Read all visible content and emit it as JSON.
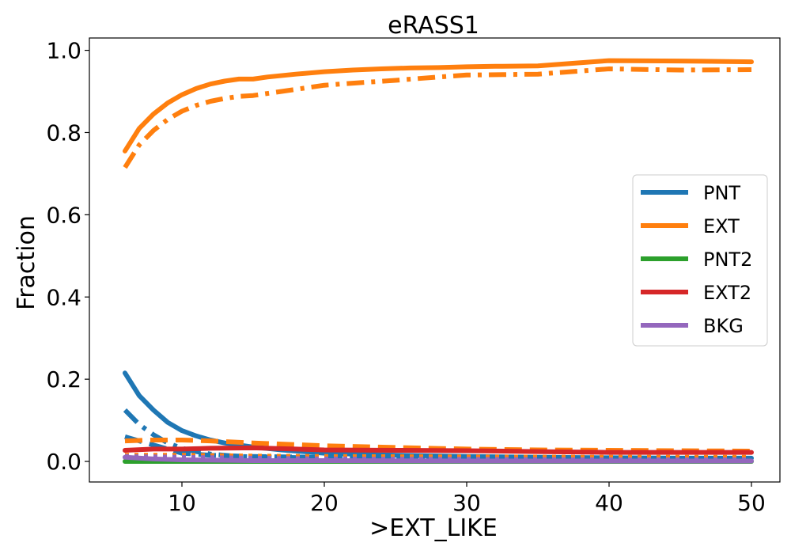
{
  "chart_data": {
    "type": "line",
    "title": "eRASS1",
    "xlabel": ">EXT_LIKE",
    "ylabel": "Fraction",
    "xlim": [
      3.5,
      52
    ],
    "ylim": [
      -0.05,
      1.03
    ],
    "xticks": [
      10,
      20,
      30,
      40,
      50
    ],
    "xtick_labels": [
      "10",
      "20",
      "30",
      "40",
      "50"
    ],
    "yticks": [
      0.0,
      0.2,
      0.4,
      0.6,
      0.8,
      1.0
    ],
    "ytick_labels": [
      "0.0",
      "0.2",
      "0.4",
      "0.6",
      "0.8",
      "1.0"
    ],
    "grid": false,
    "legend_position": "right",
    "legend": [
      {
        "name": "PNT",
        "color": "#1f77b4"
      },
      {
        "name": "EXT",
        "color": "#ff7f0e"
      },
      {
        "name": "PNT2",
        "color": "#2ca02c"
      },
      {
        "name": "EXT2",
        "color": "#d62728"
      },
      {
        "name": "BKG",
        "color": "#9467bd"
      }
    ],
    "series": [
      {
        "name": "PNT",
        "style": "solid",
        "color": "#1f77b4",
        "x": [
          6,
          7,
          8,
          9,
          10,
          11,
          12,
          13,
          14,
          15,
          17,
          20,
          25,
          30,
          35,
          40,
          45,
          50
        ],
        "y": [
          0.215,
          0.16,
          0.125,
          0.095,
          0.075,
          0.062,
          0.052,
          0.045,
          0.04,
          0.035,
          0.028,
          0.02,
          0.015,
          0.012,
          0.01,
          0.009,
          0.008,
          0.008
        ]
      },
      {
        "name": "EXT",
        "style": "solid",
        "color": "#ff7f0e",
        "x": [
          6,
          7,
          8,
          9,
          10,
          11,
          12,
          13,
          14,
          15,
          16,
          18,
          20,
          22,
          24,
          26,
          28,
          30,
          32,
          35,
          38,
          40,
          45,
          50
        ],
        "y": [
          0.755,
          0.81,
          0.845,
          0.872,
          0.892,
          0.907,
          0.918,
          0.925,
          0.93,
          0.93,
          0.935,
          0.942,
          0.948,
          0.952,
          0.955,
          0.957,
          0.958,
          0.96,
          0.961,
          0.962,
          0.97,
          0.975,
          0.974,
          0.972
        ]
      },
      {
        "name": "PNT (dashed)",
        "style": "dashed",
        "color": "#1f77b4",
        "x": [
          6,
          7,
          8,
          9,
          10,
          12,
          15,
          20,
          30,
          40,
          50
        ],
        "y": [
          0.06,
          0.05,
          0.04,
          0.03,
          0.02,
          0.015,
          0.012,
          0.01,
          0.008,
          0.007,
          0.006
        ]
      },
      {
        "name": "PNT (dashdot)",
        "style": "dashdot",
        "color": "#1f77b4",
        "x": [
          6,
          7,
          8,
          9,
          10,
          11,
          12,
          14,
          17,
          20,
          30,
          40,
          50
        ],
        "y": [
          0.125,
          0.09,
          0.065,
          0.045,
          0.032,
          0.024,
          0.018,
          0.012,
          0.01,
          0.008,
          0.006,
          0.005,
          0.005
        ]
      },
      {
        "name": "EXT (dashdot)",
        "style": "dashdot",
        "color": "#ff7f0e",
        "x": [
          6,
          7,
          8,
          9,
          10,
          11,
          12,
          13,
          14,
          15,
          17,
          20,
          22,
          25,
          28,
          30,
          35,
          40,
          45,
          50
        ],
        "y": [
          0.715,
          0.77,
          0.805,
          0.832,
          0.852,
          0.866,
          0.876,
          0.883,
          0.888,
          0.89,
          0.9,
          0.915,
          0.92,
          0.927,
          0.935,
          0.94,
          0.942,
          0.955,
          0.952,
          0.953
        ]
      },
      {
        "name": "EXT (dashed)",
        "style": "dashed",
        "color": "#ff7f0e",
        "x": [
          6,
          8,
          10,
          12,
          15,
          20,
          25,
          30,
          35,
          40,
          45,
          50
        ],
        "y": [
          0.05,
          0.052,
          0.052,
          0.05,
          0.045,
          0.038,
          0.034,
          0.03,
          0.028,
          0.027,
          0.026,
          0.025
        ]
      },
      {
        "name": "EXT (dotted)",
        "style": "dotted",
        "color": "#ff7f0e",
        "x": [
          6,
          10,
          15,
          20,
          30,
          40,
          50
        ],
        "y": [
          0.015,
          0.015,
          0.013,
          0.012,
          0.011,
          0.01,
          0.01
        ]
      },
      {
        "name": "PNT2",
        "style": "solid",
        "color": "#2ca02c",
        "x": [
          6,
          8,
          10,
          15,
          20,
          30,
          40,
          50
        ],
        "y": [
          0.0,
          0.0,
          0.0,
          0.0,
          0.0,
          0.0,
          0.0,
          0.0
        ]
      },
      {
        "name": "BKG",
        "style": "solid",
        "color": "#9467bd",
        "x": [
          6,
          8,
          10,
          15,
          20,
          30,
          40,
          50
        ],
        "y": [
          0.01,
          0.006,
          0.004,
          0.002,
          0.002,
          0.001,
          0.001,
          0.001
        ]
      },
      {
        "name": "BKG (dotted)",
        "style": "dotted",
        "color": "#9467bd",
        "x": [
          6,
          10,
          15,
          20,
          30,
          40,
          50
        ],
        "y": [
          0.012,
          0.01,
          0.008,
          0.006,
          0.005,
          0.004,
          0.004
        ]
      },
      {
        "name": "EXT2",
        "style": "solid",
        "color": "#d62728",
        "x": [
          6,
          8,
          10,
          12,
          15,
          18,
          20,
          25,
          30,
          35,
          40,
          45,
          50
        ],
        "y": [
          0.027,
          0.03,
          0.03,
          0.032,
          0.033,
          0.03,
          0.028,
          0.027,
          0.026,
          0.024,
          0.022,
          0.022,
          0.022
        ]
      }
    ]
  }
}
